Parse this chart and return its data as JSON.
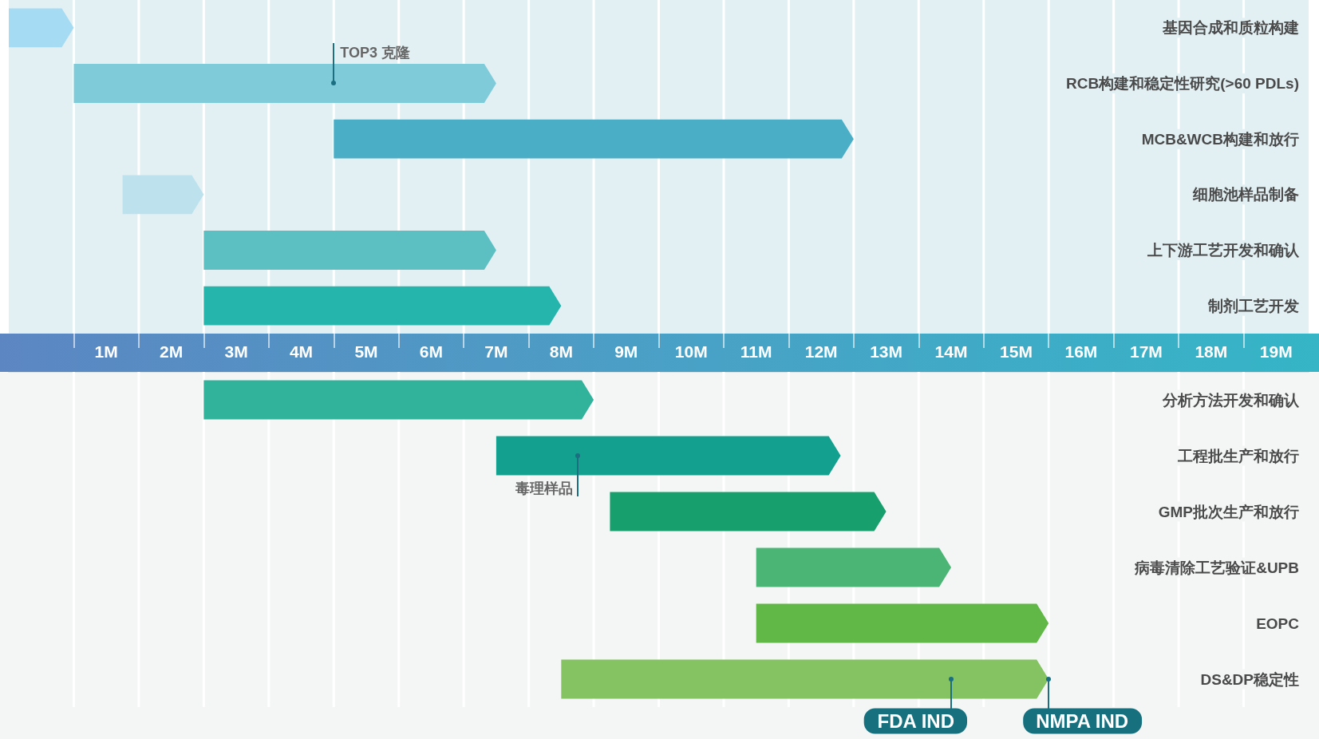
{
  "chart_data": [
    {
      "type": "bar",
      "orientation": "horizontal",
      "categories": [
        "基因合成和质粒构建",
        "RCB构建和稳定性研究(>60 PDLs)",
        "MCB&WCB构建和放行",
        "细胞池样品制备",
        "上下游工艺开发和确认",
        "制剂工艺开发"
      ],
      "base": [
        -1,
        0,
        4,
        0.75,
        2,
        2
      ],
      "values": [
        1,
        6.5,
        8,
        1.25,
        4.5,
        5.5
      ],
      "colors": [
        "#a6dcf3",
        "#7fcbd9",
        "#4aaec6",
        "#bde2ee",
        "#5cc0c3",
        "#26b5ad"
      ],
      "xlim": [
        -1,
        19
      ],
      "xticks": [
        {
          "value": 0,
          "label": null
        },
        {
          "value": 0.5,
          "label": "1M"
        },
        {
          "value": 1,
          "label": null
        },
        {
          "value": 1.5,
          "label": "2M"
        },
        {
          "value": 2,
          "label": null
        },
        {
          "value": 2.5,
          "label": "3M"
        },
        {
          "value": 3,
          "label": null
        },
        {
          "value": 3.5,
          "label": "4M"
        },
        {
          "value": 4,
          "label": null
        },
        {
          "value": 4.5,
          "label": "5M"
        },
        {
          "value": 5,
          "label": null
        },
        {
          "value": 5.5,
          "label": "6M"
        },
        {
          "value": 6,
          "label": null
        },
        {
          "value": 6.5,
          "label": "7M"
        },
        {
          "value": 7,
          "label": null
        },
        {
          "value": 7.5,
          "label": "8M"
        },
        {
          "value": 8,
          "label": null
        },
        {
          "value": 8.5,
          "label": "9M"
        },
        {
          "value": 9,
          "label": null
        },
        {
          "value": 9.5,
          "label": "10M"
        },
        {
          "value": 10,
          "label": null
        },
        {
          "value": 10.5,
          "label": "11M"
        },
        {
          "value": 11,
          "label": null
        },
        {
          "value": 11.5,
          "label": "12M"
        },
        {
          "value": 12,
          "label": null
        },
        {
          "value": 12.5,
          "label": "13M"
        },
        {
          "value": 13,
          "label": null
        },
        {
          "value": 13.5,
          "label": "14M"
        },
        {
          "value": 14,
          "label": null
        },
        {
          "value": 14.5,
          "label": "15M"
        },
        {
          "value": 15,
          "label": null
        },
        {
          "value": 15.5,
          "label": "16M"
        },
        {
          "value": 16,
          "label": null
        },
        {
          "value": 16.5,
          "label": "17M"
        },
        {
          "value": 17,
          "label": null
        },
        {
          "value": 17.5,
          "label": "18M"
        },
        {
          "value": 18,
          "label": null
        },
        {
          "value": 18.5,
          "label": "19M"
        }
      ],
      "grid": "x",
      "annotations": [
        {
          "text": "TOP3 克隆",
          "x": 4,
          "y": "RCB构建和稳定性研究(>60 PDLs)"
        }
      ]
    },
    {
      "type": "bar",
      "orientation": "horizontal",
      "categories": [
        "分析方法开发和确认",
        "工程批生产和放行",
        "GMP批次生产和放行",
        "病毒清除工艺验证&UPB",
        "EOPC",
        "DS&DP稳定性"
      ],
      "base": [
        2,
        6.5,
        8.25,
        10.5,
        10.5,
        7.5
      ],
      "values": [
        6,
        5.3,
        4.25,
        3,
        4.5,
        7.5
      ],
      "colors": [
        "#30b29b",
        "#14a08e",
        "#17a06e",
        "#4ab574",
        "#62b846",
        "#85c262"
      ],
      "xlim": [
        -1,
        19
      ],
      "xticks": [
        {
          "value": 0,
          "label": null
        },
        {
          "value": 1,
          "label": null
        },
        {
          "value": 2,
          "label": null
        },
        {
          "value": 3,
          "label": null
        },
        {
          "value": 4,
          "label": null
        },
        {
          "value": 5,
          "label": null
        },
        {
          "value": 6,
          "label": null
        },
        {
          "value": 7,
          "label": null
        },
        {
          "value": 8,
          "label": null
        },
        {
          "value": 9,
          "label": null
        },
        {
          "value": 10,
          "label": null
        },
        {
          "value": 11,
          "label": null
        },
        {
          "value": 12,
          "label": null
        },
        {
          "value": 13,
          "label": null
        },
        {
          "value": 14,
          "label": null
        },
        {
          "value": 15,
          "label": null
        },
        {
          "value": 16,
          "label": null
        },
        {
          "value": 17,
          "label": null
        },
        {
          "value": 18,
          "label": null
        }
      ],
      "grid": "x",
      "tick_labels": "y",
      "annotations": [
        {
          "text": "毒理样品",
          "x": 7.75,
          "y": "工程批生产和放行"
        },
        {
          "text": "FDA IND",
          "x": 13.5,
          "y": "DS&DP稳定性"
        },
        {
          "text": "NMPA IND",
          "x": 15,
          "y": "DS&DP稳定性"
        }
      ]
    }
  ]
}
